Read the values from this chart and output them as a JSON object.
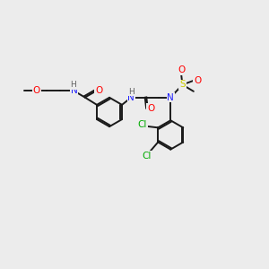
{
  "bg_color": "#ececec",
  "bond_color": "#1a1a1a",
  "atom_colors": {
    "N": "#2020ff",
    "O": "#ff0000",
    "Cl": "#00aa00",
    "S": "#cccc00",
    "C": "#1a1a1a",
    "H": "#606060"
  },
  "lw": 1.4,
  "fs": 7.5,
  "r1": 0.55,
  "r2": 0.55
}
